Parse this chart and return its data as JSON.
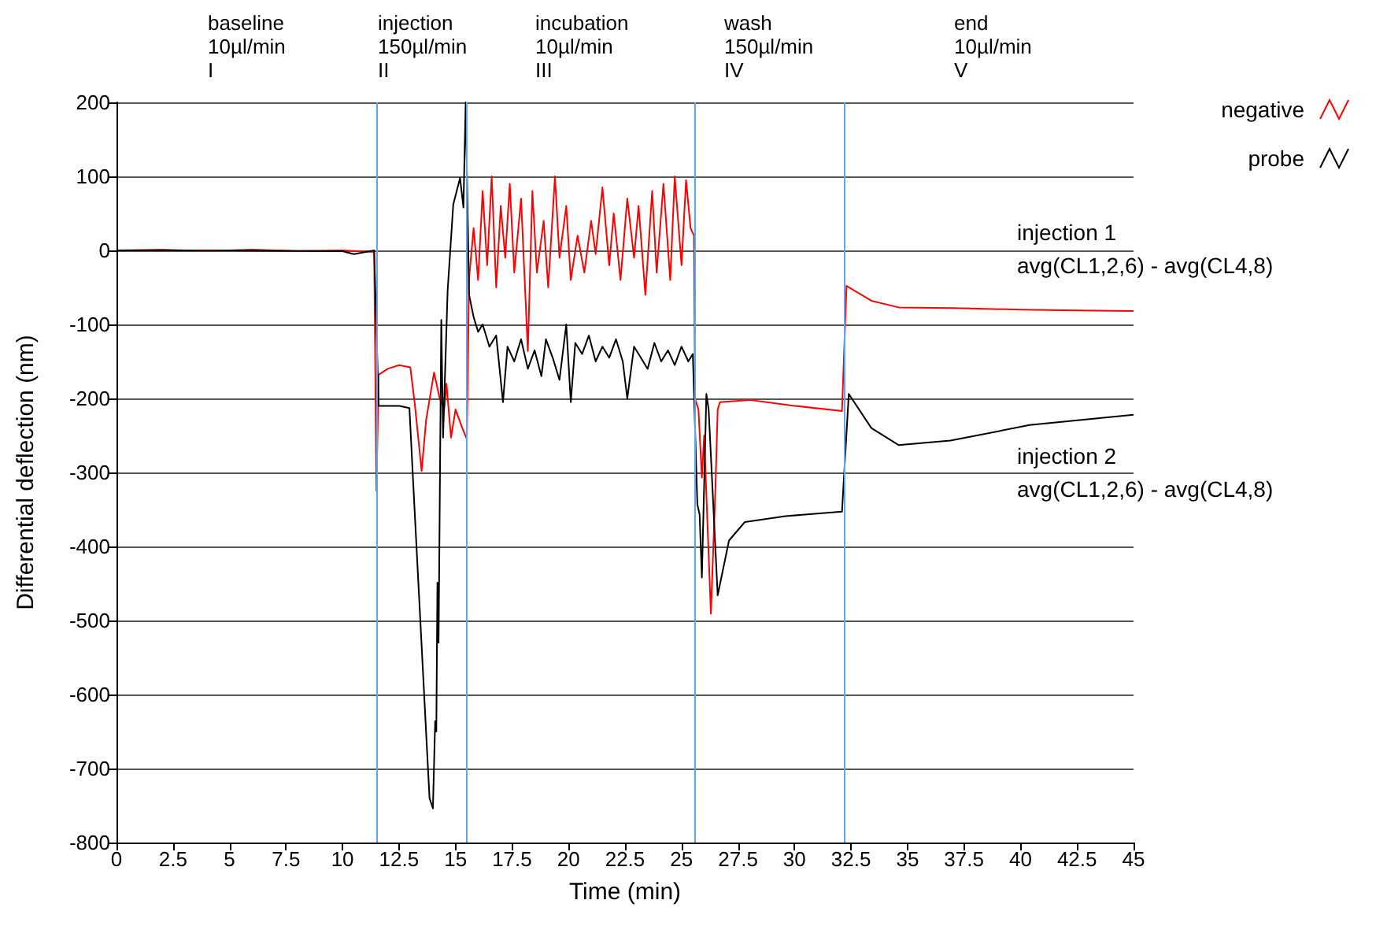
{
  "chart_data": {
    "type": "line",
    "xlabel": "Time (min)",
    "ylabel": "Differential deflection (nm)",
    "xlim": [
      0,
      45
    ],
    "xticks": [
      0,
      2.5,
      5,
      7.5,
      10,
      12.5,
      15,
      17.5,
      20,
      22.5,
      25,
      27.5,
      30,
      32.5,
      35,
      37.5,
      40,
      42.5,
      45
    ],
    "ylim": [
      -800,
      200
    ],
    "yticks": [
      -800,
      -700,
      -600,
      -500,
      -400,
      -300,
      -200,
      -100,
      0,
      100,
      200
    ],
    "grid": "y",
    "legend": "top right",
    "marker": "none",
    "line_style": "solid",
    "annotations": [
      "baseline\n10µl/min\nI",
      "injection\n150µl/min\nII",
      "incubation\n10µl/min\nIII",
      "wash\n150µl/min\nIV",
      "end\n10µl/min\nV",
      "injection 1\navg(CL1,2,6) - avg(CL4,8)",
      "injection 2\navg(CL1,2,6) - avg(CL4,8)"
    ],
    "ref_lines": [
      {
        "axis": "x",
        "value": 11.5,
        "color": "#5aa8f0"
      },
      {
        "axis": "x",
        "value": 15.5,
        "color": "#5aa8f0"
      },
      {
        "axis": "x",
        "value": 25.6,
        "color": "#5aa8f0"
      },
      {
        "axis": "x",
        "value": 32.2,
        "color": "#5aa8f0"
      }
    ],
    "series": [
      {
        "name": "negative",
        "color": "#ff0000",
        "x": [
          0,
          2,
          4,
          6,
          8,
          10,
          11.4,
          11.5,
          11.6,
          12,
          12.5,
          13.0,
          13.2,
          13.5,
          13.7,
          14.05,
          14.3,
          14.5,
          14.6,
          14.8,
          15.0,
          15.3,
          15.5,
          15.6,
          15.8,
          16.0,
          16.2,
          16.4,
          16.6,
          16.8,
          17.0,
          17.2,
          17.4,
          17.6,
          17.9,
          18.2,
          18.4,
          18.6,
          18.9,
          19.1,
          19.4,
          19.6,
          19.9,
          20.1,
          20.4,
          20.7,
          21.0,
          21.2,
          21.5,
          21.8,
          22.0,
          22.3,
          22.6,
          22.9,
          23.1,
          23.4,
          23.7,
          23.9,
          24.2,
          24.5,
          24.7,
          25.0,
          25.2,
          25.4,
          25.55,
          25.6,
          25.75,
          25.9,
          26.0,
          26.3,
          26.5,
          26.6,
          26.7,
          28,
          30,
          32.1,
          32.3,
          33.4,
          34.6,
          37,
          40,
          42.5,
          45
        ],
        "values": [
          0,
          1,
          -1,
          1,
          -1,
          0,
          -2,
          -325,
          -168,
          -160,
          -155,
          -158,
          -208,
          -298,
          -229,
          -165,
          -200,
          -215,
          -180,
          -253,
          -215,
          -240,
          -255,
          -38,
          30,
          -40,
          80,
          -20,
          100,
          -50,
          60,
          -10,
          90,
          -30,
          70,
          -136,
          80,
          -30,
          40,
          -50,
          100,
          -10,
          60,
          -40,
          20,
          -30,
          40,
          -5,
          85,
          -20,
          50,
          -40,
          70,
          -10,
          60,
          -60,
          80,
          -30,
          90,
          -40,
          100,
          -20,
          95,
          30,
          20,
          -201,
          -215,
          -307,
          -250,
          -491,
          -321,
          -215,
          -205,
          -202,
          -210,
          -217,
          -48,
          -68,
          -77,
          -78,
          -80,
          -81,
          -82
        ]
      },
      {
        "name": "probe",
        "color": "#000000",
        "x": [
          0,
          5,
          10,
          10.5,
          11.4,
          11.6,
          12.5,
          12.96,
          13.2,
          13.85,
          14.0,
          14.1,
          14.15,
          14.2,
          14.25,
          14.37,
          14.45,
          14.65,
          14.9,
          15.2,
          15.35,
          15.45,
          15.6,
          15.8,
          16.0,
          16.2,
          16.5,
          16.8,
          17.1,
          17.3,
          17.6,
          17.9,
          18.2,
          18.5,
          18.8,
          19.0,
          19.3,
          19.6,
          19.9,
          20.1,
          20.3,
          20.6,
          20.9,
          21.2,
          21.5,
          21.8,
          22.1,
          22.4,
          22.6,
          22.9,
          23.2,
          23.5,
          23.8,
          24.1,
          24.4,
          24.7,
          25.0,
          25.3,
          25.5,
          25.7,
          25.8,
          25.9,
          26.1,
          26.2,
          26.6,
          27.1,
          27.8,
          29.6,
          32.1,
          32.4,
          33.4,
          34.6,
          36.9,
          40.4,
          45
        ],
        "values": [
          0,
          0,
          -1,
          -5,
          0,
          -210,
          -210,
          -213,
          -357,
          -740,
          -754,
          -636,
          -650,
          -449,
          -530,
          -94,
          -253,
          -55,
          62,
          98,
          58,
          200,
          -60,
          -90,
          -110,
          -100,
          -130,
          -115,
          -205,
          -130,
          -150,
          -120,
          -160,
          -135,
          -170,
          -120,
          -145,
          -175,
          -100,
          -205,
          -125,
          -140,
          -115,
          -150,
          -130,
          -145,
          -120,
          -150,
          -200,
          -130,
          -145,
          -160,
          -125,
          -150,
          -135,
          -155,
          -130,
          -150,
          -140,
          -343,
          -357,
          -442,
          -194,
          -215,
          -466,
          -392,
          -367,
          -359,
          -353,
          -194,
          -240,
          -263,
          -257,
          -236,
          -222
        ]
      }
    ]
  }
}
